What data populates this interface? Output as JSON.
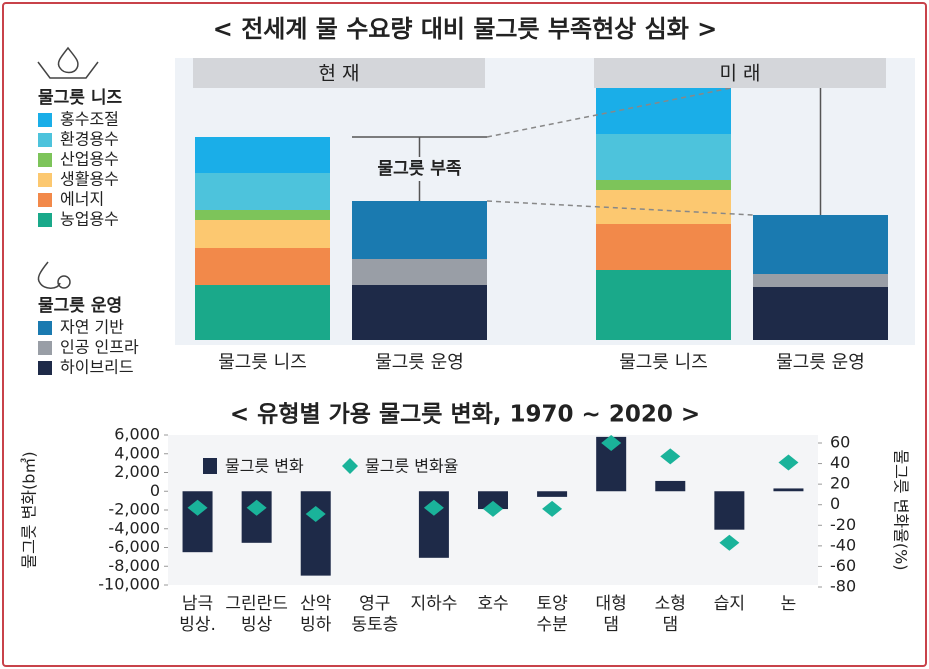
{
  "chart_data": [
    {
      "type": "stacked_bar",
      "title": "< 전세계 물 수요량 대비 물그릇 부족현상 심화 >",
      "groups": [
        "현 재",
        "미 래"
      ],
      "categories": [
        "물그릇 니즈",
        "물그릇 운영",
        "물그릇 니즈",
        "물그릇 운영"
      ],
      "annotation": "물그릇 부족",
      "series_groups": [
        {
          "title": "물그릇 니즈",
          "series": [
            {
              "name": "농업용수",
              "color": "#1aa98a",
              "values": [
                55,
                null,
                70,
                null
              ]
            },
            {
              "name": "에너지",
              "color": "#f2894a",
              "values": [
                37,
                null,
                46,
                null
              ]
            },
            {
              "name": "생활용수",
              "color": "#fcc870",
              "values": [
                28,
                null,
                34,
                null
              ]
            },
            {
              "name": "산업용수",
              "color": "#7dc45a",
              "values": [
                10,
                null,
                10,
                null
              ]
            },
            {
              "name": "환경용수",
              "color": "#4dc3dc",
              "values": [
                37,
                null,
                46,
                null
              ]
            },
            {
              "name": "홍수조절",
              "color": "#1aaee8",
              "values": [
                36,
                null,
                49,
                null
              ]
            }
          ]
        },
        {
          "title": "물그릇 운영",
          "series": [
            {
              "name": "하이브리드",
              "color": "#1e2a48",
              "values": [
                null,
                55,
                null,
                53
              ]
            },
            {
              "name": "인공 인프라",
              "color": "#999ea6",
              "values": [
                null,
                26,
                null,
                13
              ]
            },
            {
              "name": "자연 기반",
              "color": "#1a7ab0",
              "values": [
                null,
                58,
                null,
                59
              ]
            }
          ]
        }
      ]
    },
    {
      "type": "combo",
      "title": "< 유형별 가용 물그릇 변화, 1970 ~ 2020 >",
      "ylabel": "물그릇 변화(b㎥)",
      "y2label": "물그릇 변화율(%)",
      "categories": [
        "남극\n빙상.",
        "그린란드\n빙상",
        "산악\n빙하",
        "영구\n동토층",
        "지하수",
        "호수",
        "토양\n수분",
        "대형\n댐",
        "소형\n댐",
        "습지",
        "논"
      ],
      "series": [
        {
          "name": "물그릇 변화",
          "kind": "bar",
          "color": "#1e2a48",
          "values": [
            -6500,
            -5500,
            -9000,
            null,
            -7100,
            -1900,
            -600,
            5800,
            1100,
            -4100,
            300
          ]
        },
        {
          "name": "물그릇 변화율",
          "kind": "scatter",
          "axis": "y2",
          "color": "#1ab39a",
          "values": [
            -3,
            -3,
            -9,
            null,
            -3,
            -4,
            -4,
            60,
            47,
            -37,
            41
          ]
        }
      ],
      "ylim": [
        -10000,
        6000
      ],
      "yticks": [
        {
          "value": 6000,
          "label": "6,000"
        },
        {
          "value": 4000,
          "label": "4,000"
        },
        {
          "value": 2000,
          "label": "2,000"
        },
        0,
        {
          "value": -2000,
          "label": "-2,000"
        },
        {
          "value": -4000,
          "label": "-4,000"
        },
        {
          "value": -6000,
          "label": "-6,000"
        },
        {
          "value": -8000,
          "label": "-8,000"
        },
        {
          "value": -10000,
          "label": "-10,000"
        }
      ],
      "y2lim": [
        -80,
        60
      ],
      "y2ticks": [
        60,
        40,
        20,
        0,
        -20,
        -40,
        -60,
        -80
      ]
    }
  ]
}
